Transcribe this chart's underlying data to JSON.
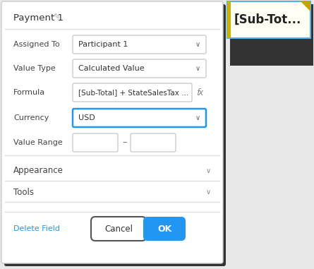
{
  "bg_color": "#e8e8e8",
  "panel_color": "#ffffff",
  "panel_border": "#cccccc",
  "title": "Payment 1",
  "title_color": "#333333",
  "title_fontsize": 9.5,
  "pencil_icon": "✎",
  "fields": [
    {
      "label": "Assigned To",
      "value": "Participant 1",
      "type": "dropdown",
      "border": "#cccccc",
      "lw": 1.0
    },
    {
      "label": "Value Type",
      "value": "Calculated Value",
      "type": "dropdown",
      "border": "#cccccc",
      "lw": 1.0
    },
    {
      "label": "Formula",
      "value": "[Sub-Total] + StateSalesTax ...",
      "type": "formula",
      "border": "#cccccc",
      "lw": 1.0
    },
    {
      "label": "Currency",
      "value": "USD",
      "type": "dropdown",
      "border": "#2196f3",
      "lw": 1.8
    },
    {
      "label": "Value Range",
      "value": "",
      "type": "range",
      "border": "#cccccc",
      "lw": 1.0
    }
  ],
  "collapsible": [
    "Appearance",
    "Tools"
  ],
  "delete_label": "Delete Field",
  "delete_color": "#2196f3",
  "cancel_label": "Cancel",
  "ok_label": "OK",
  "ok_color": "#2196f3",
  "ok_text_color": "#ffffff",
  "cancel_border": "#555555",
  "cancel_text_color": "#333333",
  "tooltip_text": "[Sub-Tot...",
  "tooltip_bg": "#fffff5",
  "tooltip_border_left": "#c8b400",
  "tooltip_border_other": "#5ab0e8",
  "tooltip_corner_color": "#c8a000",
  "separator_color": "#dddddd",
  "shadow_color": "#333333",
  "chevron_char": "∨",
  "formula_icon": "fx"
}
